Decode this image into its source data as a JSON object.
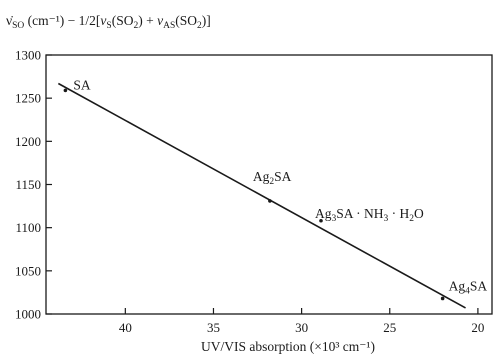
{
  "chart_data": {
    "type": "scatter",
    "ylabel_parts": [
      {
        "t": "ν̇",
        "k": "n"
      },
      {
        "t": "SO",
        "k": "sub"
      },
      {
        "t": " (cm⁻¹) − 1/2[",
        "k": "n"
      },
      {
        "t": "ν",
        "k": "i"
      },
      {
        "t": "S",
        "k": "sub"
      },
      {
        "t": "(SO",
        "k": "n"
      },
      {
        "t": "2",
        "k": "sub"
      },
      {
        "t": ") + ",
        "k": "n"
      },
      {
        "t": "ν",
        "k": "i"
      },
      {
        "t": "AS",
        "k": "sub"
      },
      {
        "t": "(SO",
        "k": "n"
      },
      {
        "t": "2",
        "k": "sub"
      },
      {
        "t": ")]",
        "k": "n"
      }
    ],
    "xlabel": "UV/VIS absorption (×10³ cm⁻¹)",
    "xlim": [
      44.5,
      19.2
    ],
    "ylim": [
      1000,
      1300
    ],
    "x_ticks": [
      "40",
      "35",
      "30",
      "25",
      "20"
    ],
    "y_ticks": [
      "1000",
      "1050",
      "1100",
      "1150",
      "1200",
      "1250",
      "1300"
    ],
    "points": [
      {
        "x": 43.4,
        "y": 1259,
        "label_parts": [
          {
            "t": "SA",
            "k": "n"
          }
        ]
      },
      {
        "x": 31.8,
        "y": 1131,
        "label_parts": [
          {
            "t": "Ag",
            "k": "n"
          },
          {
            "t": "2",
            "k": "sub"
          },
          {
            "t": "SA",
            "k": "n"
          }
        ]
      },
      {
        "x": 28.9,
        "y": 1108,
        "label_parts": [
          {
            "t": "Ag",
            "k": "n"
          },
          {
            "t": "3",
            "k": "sub"
          },
          {
            "t": "SA · NH",
            "k": "n"
          },
          {
            "t": "3",
            "k": "sub"
          },
          {
            "t": " · H",
            "k": "n"
          },
          {
            "t": "2",
            "k": "sub"
          },
          {
            "t": "O",
            "k": "n"
          }
        ]
      },
      {
        "x": 22.0,
        "y": 1018,
        "label_parts": [
          {
            "t": "Ag",
            "k": "n"
          },
          {
            "t": "4",
            "k": "sub"
          },
          {
            "t": "SA",
            "k": "n"
          }
        ]
      }
    ],
    "fit_line": {
      "x": [
        43.8,
        20.7
      ],
      "y": [
        1267,
        1007
      ]
    },
    "grid": false,
    "legend": "none"
  }
}
